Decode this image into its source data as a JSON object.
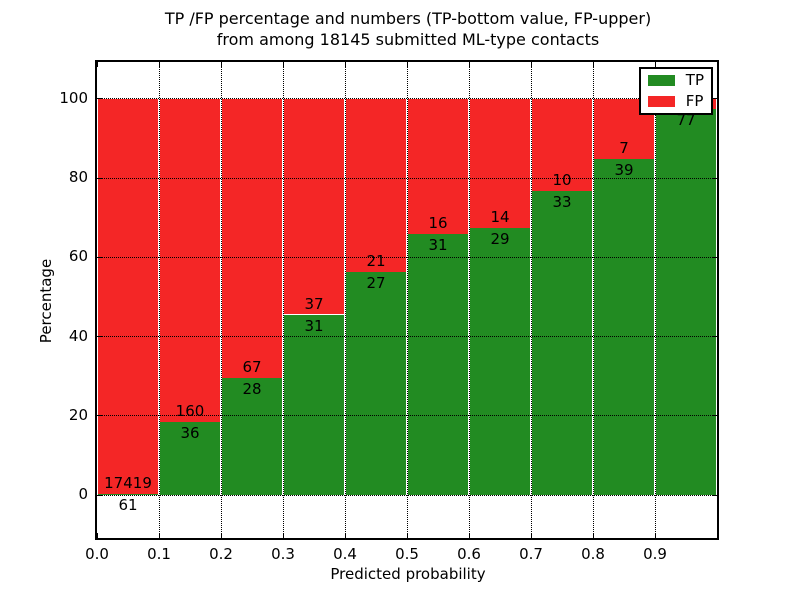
{
  "title": {
    "line1": "TP /FP percentage and numbers (TP-bottom value, FP-upper)",
    "line2": "from among 18145 submitted ML-type contacts"
  },
  "axes": {
    "xlabel": "Predicted probability",
    "ylabel": "Percentage",
    "x_tick_labels": [
      "0.0",
      "0.1",
      "0.2",
      "0.3",
      "0.4",
      "0.5",
      "0.6",
      "0.7",
      "0.8",
      "0.9"
    ],
    "y_tick_labels": [
      "0",
      "20",
      "40",
      "60",
      "80",
      "100"
    ]
  },
  "legend": {
    "items": [
      {
        "label": "TP",
        "color": "#228B22"
      },
      {
        "label": "FP",
        "color": "#F42626"
      }
    ]
  },
  "colors": {
    "tp": "#228B22",
    "fp": "#F42626",
    "grid": "#000000",
    "background": "#FFFFFF",
    "text": "#000000"
  },
  "chart_data": {
    "type": "bar",
    "stacked": true,
    "title": "TP /FP percentage and numbers (TP-bottom value, FP-upper) from among 18145 submitted ML-type contacts",
    "xlabel": "Predicted probability",
    "ylabel": "Percentage",
    "xlim": [
      0,
      1
    ],
    "ylim": [
      -10.8,
      109.3
    ],
    "x_ticks": [
      0,
      0.1,
      0.2,
      0.3,
      0.4,
      0.5,
      0.6,
      0.7,
      0.8,
      0.9,
      1.0
    ],
    "y_ticks": [
      0,
      20,
      40,
      60,
      80,
      100
    ],
    "grid": true,
    "grid_style": "dotted",
    "legend_position": "upper right",
    "bin_width": 0.1,
    "total_contacts": 18145,
    "series_names": [
      "TP",
      "FP"
    ],
    "bins": [
      {
        "x0": 0.0,
        "x1": 0.1,
        "tp": 61,
        "fp": 17419,
        "tp_percent": 0.35,
        "tp_label": "61",
        "fp_label": "17419",
        "fp_label_visible": true
      },
      {
        "x0": 0.1,
        "x1": 0.2,
        "tp": 36,
        "fp": 160,
        "tp_percent": 18.37,
        "tp_label": "36",
        "fp_label": "160",
        "fp_label_visible": true
      },
      {
        "x0": 0.2,
        "x1": 0.3,
        "tp": 28,
        "fp": 67,
        "tp_percent": 29.47,
        "tp_label": "28",
        "fp_label": "67",
        "fp_label_visible": true
      },
      {
        "x0": 0.3,
        "x1": 0.4,
        "tp": 31,
        "fp": 37,
        "tp_percent": 45.59,
        "tp_label": "31",
        "fp_label": "37",
        "fp_label_visible": true
      },
      {
        "x0": 0.4,
        "x1": 0.5,
        "tp": 27,
        "fp": 21,
        "tp_percent": 56.25,
        "tp_label": "27",
        "fp_label": "21",
        "fp_label_visible": true
      },
      {
        "x0": 0.5,
        "x1": 0.6,
        "tp": 31,
        "fp": 16,
        "tp_percent": 65.96,
        "tp_label": "31",
        "fp_label": "16",
        "fp_label_visible": true
      },
      {
        "x0": 0.6,
        "x1": 0.7,
        "tp": 29,
        "fp": 14,
        "tp_percent": 67.44,
        "tp_label": "29",
        "fp_label": "14",
        "fp_label_visible": true
      },
      {
        "x0": 0.7,
        "x1": 0.8,
        "tp": 33,
        "fp": 10,
        "tp_percent": 76.74,
        "tp_label": "33",
        "fp_label": "10",
        "fp_label_visible": true
      },
      {
        "x0": 0.8,
        "x1": 0.9,
        "tp": 39,
        "fp": 7,
        "tp_percent": 84.78,
        "tp_label": "39",
        "fp_label": "7",
        "fp_label_visible": true
      },
      {
        "x0": 0.9,
        "x1": 1.0,
        "tp": 77,
        "fp": 2,
        "tp_percent": 97.47,
        "tp_label": "77",
        "fp_label": "",
        "fp_label_visible": false
      }
    ]
  }
}
